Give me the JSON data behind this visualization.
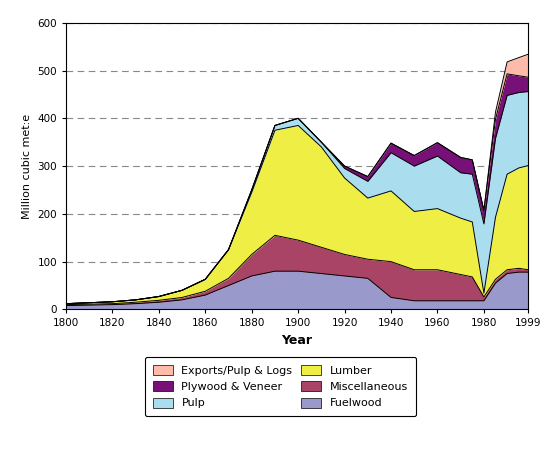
{
  "years": [
    1800,
    1810,
    1820,
    1830,
    1840,
    1850,
    1860,
    1870,
    1880,
    1890,
    1900,
    1910,
    1920,
    1930,
    1940,
    1950,
    1960,
    1970,
    1975,
    1980,
    1985,
    1990,
    1995,
    1999
  ],
  "fuelwood": [
    8,
    9,
    10,
    12,
    15,
    20,
    30,
    50,
    70,
    80,
    80,
    75,
    70,
    65,
    25,
    18,
    18,
    18,
    18,
    18,
    55,
    75,
    78,
    78
  ],
  "miscellaneous": [
    2,
    2,
    2,
    3,
    4,
    5,
    8,
    15,
    45,
    75,
    65,
    55,
    45,
    40,
    75,
    65,
    65,
    55,
    50,
    8,
    8,
    8,
    8,
    5
  ],
  "lumber": [
    2,
    3,
    4,
    5,
    8,
    15,
    25,
    60,
    130,
    220,
    240,
    210,
    160,
    128,
    148,
    122,
    128,
    118,
    115,
    8,
    130,
    200,
    210,
    218
  ],
  "pulp": [
    0,
    0,
    0,
    0,
    0,
    0,
    0,
    0,
    5,
    10,
    15,
    10,
    20,
    35,
    80,
    95,
    110,
    95,
    100,
    145,
    165,
    165,
    158,
    155
  ],
  "plywood_veneer": [
    0,
    0,
    0,
    0,
    0,
    0,
    0,
    0,
    0,
    0,
    0,
    0,
    5,
    10,
    20,
    22,
    28,
    32,
    30,
    28,
    40,
    45,
    35,
    30
  ],
  "exports_pulp_logs": [
    0,
    0,
    0,
    0,
    0,
    0,
    0,
    0,
    0,
    0,
    0,
    0,
    0,
    0,
    0,
    0,
    0,
    0,
    0,
    0,
    15,
    25,
    38,
    48
  ],
  "colors": {
    "fuelwood": "#9999cc",
    "miscellaneous": "#aa4466",
    "lumber": "#eeee44",
    "pulp": "#aaddee",
    "plywood_veneer": "#771177",
    "exports_pulp_logs": "#ffbbaa"
  },
  "xlabel": "Year",
  "ylabel": "Million cubic met:e",
  "ylim": [
    0,
    600
  ],
  "xlim": [
    1800,
    1999
  ],
  "yticks": [
    0,
    100,
    200,
    300,
    400,
    500,
    600
  ],
  "xticks": [
    1800,
    1820,
    1840,
    1860,
    1880,
    1900,
    1920,
    1940,
    1960,
    1980,
    1999
  ],
  "legend_labels": [
    "Exports/Pulp & Logs",
    "Plywood & Veneer",
    "Pulp",
    "Lumber",
    "Miscellaneous",
    "Fuelwood"
  ],
  "legend_colors": [
    "#ffbbaa",
    "#771177",
    "#aaddee",
    "#eeee44",
    "#aa4466",
    "#9999cc"
  ]
}
